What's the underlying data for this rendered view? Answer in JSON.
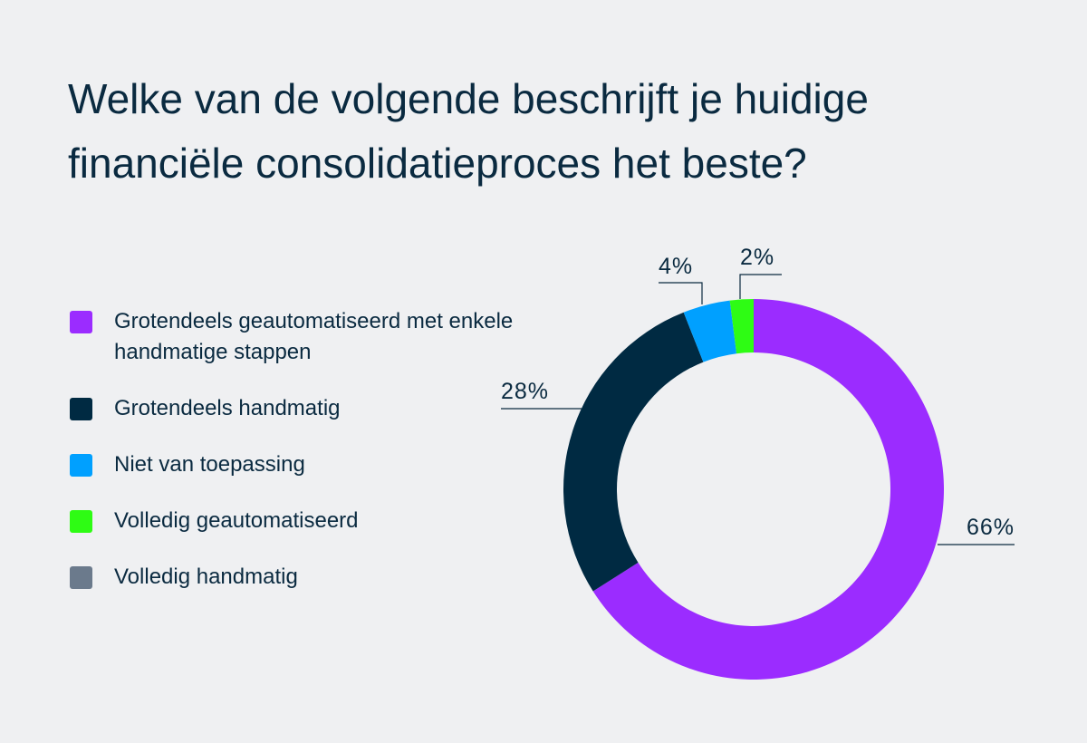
{
  "chart_data": {
    "type": "pie",
    "variant": "donut",
    "title": "Welke van de volgende beschrijft je huidige financiële consolidatieproces het beste?",
    "categories": [
      "Grotendeels geautomatiseerd met enkele handmatige stappen",
      "Grotendeels handmatig",
      "Niet van toepassing",
      "Volledig geautomatiseerd",
      "Volledig handmatig"
    ],
    "values": [
      66,
      28,
      4,
      2,
      0
    ],
    "value_labels": [
      "66%",
      "28%",
      "4%",
      "2%",
      ""
    ],
    "colors": [
      "#9b2cff",
      "#002a42",
      "#00a0ff",
      "#2efc14",
      "#6b7a8c"
    ],
    "legend_position": "left",
    "unit": "%"
  }
}
